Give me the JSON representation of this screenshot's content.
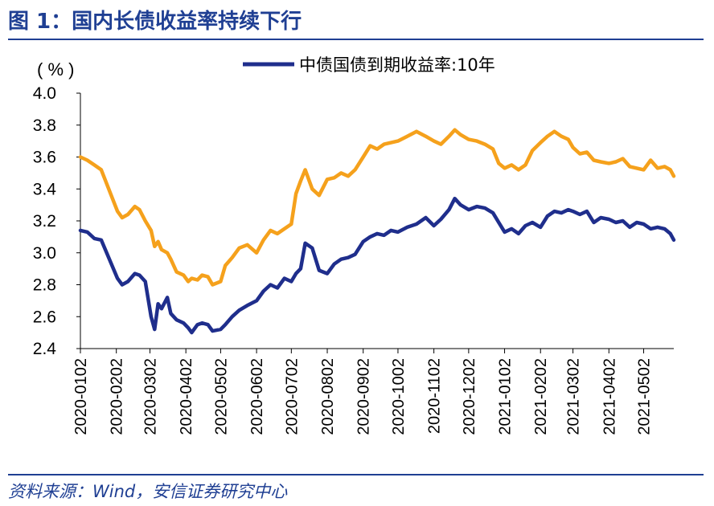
{
  "figure_title": "图 1：国内长债收益率持续下行",
  "source_note": "资料来源：Wind，安信证券研究中心",
  "chart_data": {
    "type": "line",
    "unit_label": "( % )",
    "ylim": [
      2.4,
      4.0
    ],
    "y_ticks": [
      "4.0",
      "3.8",
      "3.6",
      "3.4",
      "3.2",
      "3.0",
      "2.8",
      "2.6",
      "2.4"
    ],
    "x_ticks": [
      "2020-0102",
      "2020-0202",
      "2020-0302",
      "2020-0402",
      "2020-0502",
      "2020-0602",
      "2020-0702",
      "2020-0802",
      "2020-0902",
      "2020-1002",
      "2020-1102",
      "2020-1202",
      "2021-0102",
      "2021-0202",
      "2021-0302",
      "2021-0402",
      "2021-0502"
    ],
    "grid": false,
    "legend_position": "top",
    "x": [
      "2020-01-02",
      "2020-01-08",
      "2020-01-14",
      "2020-01-20",
      "2020-02-03",
      "2020-02-07",
      "2020-02-12",
      "2020-02-18",
      "2020-02-22",
      "2020-02-27",
      "2020-03-03",
      "2020-03-06",
      "2020-03-09",
      "2020-03-12",
      "2020-03-17",
      "2020-03-20",
      "2020-03-25",
      "2020-03-31",
      "2020-04-04",
      "2020-04-07",
      "2020-04-12",
      "2020-04-16",
      "2020-04-21",
      "2020-04-25",
      "2020-05-02",
      "2020-05-06",
      "2020-05-12",
      "2020-05-18",
      "2020-05-25",
      "2020-06-02",
      "2020-06-08",
      "2020-06-14",
      "2020-06-20",
      "2020-06-26",
      "2020-07-02",
      "2020-07-06",
      "2020-07-10",
      "2020-07-14",
      "2020-07-20",
      "2020-07-26",
      "2020-08-02",
      "2020-08-08",
      "2020-08-14",
      "2020-08-20",
      "2020-08-26",
      "2020-09-02",
      "2020-09-08",
      "2020-09-14",
      "2020-09-20",
      "2020-09-26",
      "2020-10-02",
      "2020-10-10",
      "2020-10-18",
      "2020-10-26",
      "2020-11-02",
      "2020-11-08",
      "2020-11-15",
      "2020-11-20",
      "2020-11-25",
      "2020-12-02",
      "2020-12-09",
      "2020-12-16",
      "2020-12-23",
      "2020-12-28",
      "2021-01-02",
      "2021-01-08",
      "2021-01-14",
      "2021-01-20",
      "2021-01-26",
      "2021-02-02",
      "2021-02-08",
      "2021-02-14",
      "2021-02-20",
      "2021-02-26",
      "2021-03-02",
      "2021-03-08",
      "2021-03-14",
      "2021-03-20",
      "2021-03-26",
      "2021-04-02",
      "2021-04-08",
      "2021-04-14",
      "2021-04-20",
      "2021-04-26",
      "2021-05-02",
      "2021-05-08",
      "2021-05-14",
      "2021-05-20",
      "2021-05-25",
      "2021-05-28"
    ],
    "series": [
      {
        "name": "中债国债到期收益率:10年",
        "color": "#1f2e8c",
        "legend": true,
        "values": [
          3.14,
          3.13,
          3.09,
          3.08,
          2.84,
          2.8,
          2.82,
          2.87,
          2.86,
          2.82,
          2.6,
          2.52,
          2.68,
          2.65,
          2.72,
          2.62,
          2.58,
          2.56,
          2.53,
          2.5,
          2.55,
          2.56,
          2.55,
          2.51,
          2.52,
          2.55,
          2.6,
          2.64,
          2.67,
          2.7,
          2.76,
          2.8,
          2.78,
          2.84,
          2.82,
          2.87,
          2.9,
          3.06,
          3.03,
          2.89,
          2.87,
          2.93,
          2.96,
          2.97,
          2.99,
          3.07,
          3.1,
          3.12,
          3.11,
          3.14,
          3.13,
          3.16,
          3.18,
          3.22,
          3.17,
          3.21,
          3.27,
          3.34,
          3.3,
          3.27,
          3.29,
          3.28,
          3.25,
          3.19,
          3.13,
          3.15,
          3.12,
          3.17,
          3.19,
          3.16,
          3.23,
          3.26,
          3.25,
          3.27,
          3.26,
          3.24,
          3.26,
          3.19,
          3.22,
          3.21,
          3.19,
          3.2,
          3.16,
          3.19,
          3.18,
          3.15,
          3.16,
          3.15,
          3.12,
          3.08
        ]
      },
      {
        "name": "",
        "color": "#f5a11c",
        "legend": false,
        "values": [
          3.6,
          3.58,
          3.55,
          3.52,
          3.26,
          3.22,
          3.24,
          3.29,
          3.27,
          3.2,
          3.14,
          3.04,
          3.07,
          3.02,
          3.0,
          2.96,
          2.88,
          2.86,
          2.82,
          2.84,
          2.83,
          2.86,
          2.85,
          2.8,
          2.82,
          2.92,
          2.97,
          3.03,
          3.05,
          3.0,
          3.08,
          3.14,
          3.12,
          3.15,
          3.18,
          3.37,
          3.45,
          3.52,
          3.4,
          3.36,
          3.46,
          3.47,
          3.5,
          3.48,
          3.52,
          3.6,
          3.67,
          3.65,
          3.68,
          3.69,
          3.7,
          3.73,
          3.76,
          3.73,
          3.7,
          3.68,
          3.73,
          3.77,
          3.74,
          3.71,
          3.7,
          3.68,
          3.65,
          3.56,
          3.53,
          3.55,
          3.52,
          3.55,
          3.64,
          3.69,
          3.73,
          3.76,
          3.73,
          3.71,
          3.66,
          3.62,
          3.63,
          3.58,
          3.57,
          3.56,
          3.57,
          3.59,
          3.54,
          3.53,
          3.52,
          3.58,
          3.53,
          3.54,
          3.52,
          3.48
        ]
      }
    ]
  }
}
